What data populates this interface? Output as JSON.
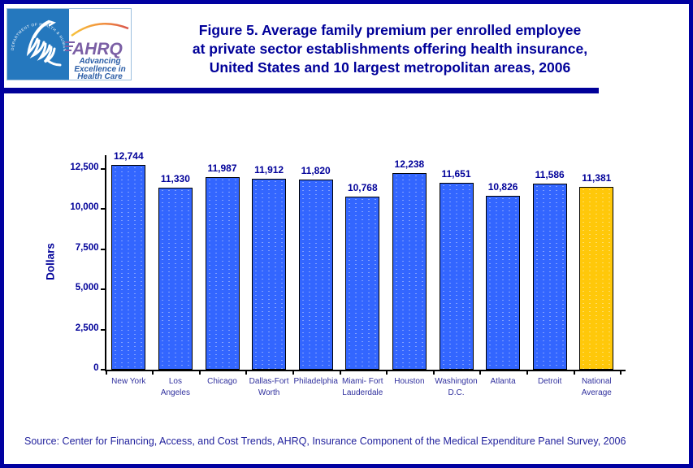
{
  "page": {
    "border_color": "#0000A0",
    "background": "#FFFFFF",
    "accent_navy": "#000099"
  },
  "header": {
    "logo": {
      "seal_text": "DEPARTMENT OF HEALTH & HUMAN SERVICES • USA",
      "ahrq_acronym": "AHRQ",
      "tagline_lines": [
        "Advancing",
        "Excellence in",
        "Health Care"
      ]
    },
    "title_lines": [
      "Figure 5. Average family premium per enrolled employee",
      "at private sector establishments offering health insurance,",
      "United States and 10 largest metropolitan areas, 2006"
    ]
  },
  "chart_data": {
    "type": "bar",
    "title": "Figure 5. Average family premium per enrolled employee at private sector establishments offering health insurance, United States and 10 largest metropolitan areas, 2006",
    "xlabel": "",
    "ylabel": "Dollars",
    "ylim": [
      0,
      12500
    ],
    "grid": false,
    "legend": "none",
    "yticks": [
      0,
      2500,
      5000,
      7500,
      10000,
      12500
    ],
    "ytick_labels": [
      "0",
      "2,500",
      "5,000",
      "7,500",
      "10,000",
      "12,500"
    ],
    "categories": [
      "New York",
      "Los Angeles",
      "Chicago",
      "Dallas-Fort Worth",
      "Philadelphia",
      "Miami-Fort Lauderdale",
      "Houston",
      "Washington D.C.",
      "Atlanta",
      "Detroit",
      "National Average"
    ],
    "category_label_lines": [
      [
        "New York"
      ],
      [
        "Los",
        "Angeles"
      ],
      [
        "Chicago"
      ],
      [
        "Dallas-Fort",
        "Worth"
      ],
      [
        "Philadelphia"
      ],
      [
        "Miami- Fort",
        "Lauderdale"
      ],
      [
        "Houston"
      ],
      [
        "Washington",
        "D.C."
      ],
      [
        "Atlanta"
      ],
      [
        "Detroit"
      ],
      [
        "National",
        "Average"
      ]
    ],
    "values": [
      12744,
      11330,
      11987,
      11912,
      11820,
      10768,
      12238,
      11651,
      10826,
      11586,
      11381
    ],
    "value_labels": [
      "12,744",
      "11,330",
      "11,987",
      "11,912",
      "11,820",
      "10,768",
      "12,238",
      "11,651",
      "10,826",
      "11,586",
      "11,381"
    ],
    "bar_colors": {
      "default": "#3366FF",
      "highlight": "#FFC80A"
    },
    "highlight_index": 10
  },
  "footer": {
    "source": "Source: Center for Financing, Access, and Cost Trends, AHRQ, Insurance Component of the Medical Expenditure Panel Survey, 2006"
  }
}
